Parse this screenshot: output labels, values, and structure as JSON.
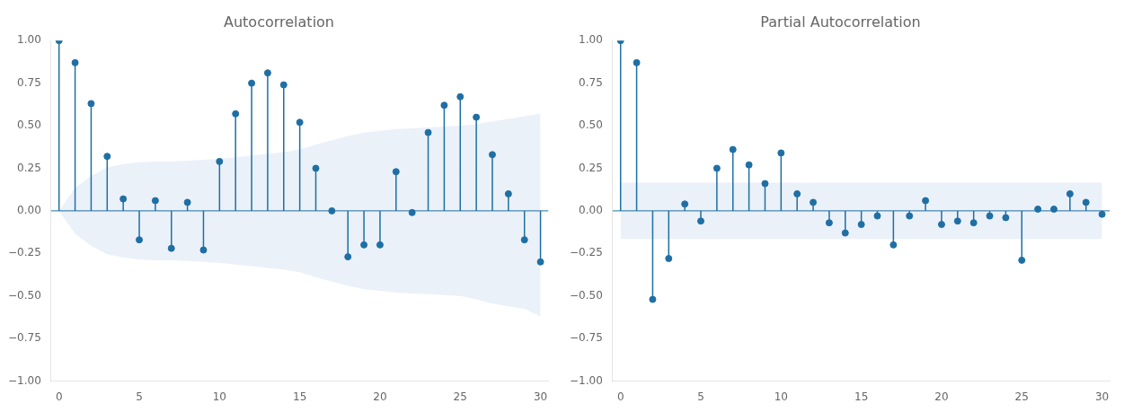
{
  "chart_data": [
    {
      "type": "stem",
      "title": "Autocorrelation",
      "x": [
        0,
        1,
        2,
        3,
        4,
        5,
        6,
        7,
        8,
        9,
        10,
        11,
        12,
        13,
        14,
        15,
        16,
        17,
        18,
        19,
        20,
        21,
        22,
        23,
        24,
        25,
        26,
        27,
        28,
        29,
        30
      ],
      "series": [
        {
          "type": "band",
          "color": "#aec9e8",
          "upper": [
            0.0,
            0.135,
            0.205,
            0.255,
            0.275,
            0.285,
            0.29,
            0.29,
            0.295,
            0.3,
            0.305,
            0.315,
            0.325,
            0.335,
            0.345,
            0.36,
            0.39,
            0.415,
            0.44,
            0.46,
            0.47,
            0.48,
            0.485,
            0.49,
            0.495,
            0.5,
            0.51,
            0.525,
            0.54,
            0.555,
            0.57
          ],
          "lower": [
            0.0,
            -0.135,
            -0.205,
            -0.255,
            -0.275,
            -0.285,
            -0.29,
            -0.29,
            -0.295,
            -0.3,
            -0.305,
            -0.315,
            -0.325,
            -0.335,
            -0.345,
            -0.36,
            -0.39,
            -0.415,
            -0.44,
            -0.46,
            -0.47,
            -0.48,
            -0.485,
            -0.49,
            -0.495,
            -0.5,
            -0.52,
            -0.545,
            -0.56,
            -0.575,
            -0.62
          ]
        },
        {
          "type": "stem",
          "color": "#1f6fa4",
          "marker": "circle",
          "values": [
            1.0,
            0.87,
            0.63,
            0.32,
            0.07,
            -0.17,
            0.06,
            -0.22,
            0.05,
            -0.23,
            0.29,
            0.57,
            0.75,
            0.81,
            0.74,
            0.52,
            0.25,
            0.0,
            -0.27,
            -0.2,
            -0.2,
            0.23,
            -0.01,
            0.46,
            0.62,
            0.67,
            0.55,
            0.33,
            0.1,
            -0.17,
            -0.3
          ]
        }
      ],
      "xlim": [
        -0.5,
        30.5
      ],
      "xticks": [
        0,
        5,
        10,
        15,
        20,
        25,
        30
      ],
      "ylim": [
        -1.0,
        1.0
      ],
      "yticks": [
        {
          "value": -1.0,
          "label": "−1.00"
        },
        {
          "value": -0.75,
          "label": "−0.75"
        },
        {
          "value": -0.5,
          "label": "−0.50"
        },
        {
          "value": -0.25,
          "label": "−0.25"
        },
        {
          "value": 0.0,
          "label": "0.00"
        },
        {
          "value": 0.25,
          "label": "0.25"
        },
        {
          "value": 0.5,
          "label": "0.50"
        },
        {
          "value": 0.75,
          "label": "0.75"
        },
        {
          "value": 1.0,
          "label": "1.00"
        }
      ],
      "grid": false
    },
    {
      "type": "stem",
      "title": "Partial Autocorrelation",
      "x": [
        0,
        1,
        2,
        3,
        4,
        5,
        6,
        7,
        8,
        9,
        10,
        11,
        12,
        13,
        14,
        15,
        16,
        17,
        18,
        19,
        20,
        21,
        22,
        23,
        24,
        25,
        26,
        27,
        28,
        29,
        30
      ],
      "series": [
        {
          "type": "band",
          "color": "#aec9e8",
          "upper": [
            0.165,
            0.165,
            0.165,
            0.165,
            0.165,
            0.165,
            0.165,
            0.165,
            0.165,
            0.165,
            0.165,
            0.165,
            0.165,
            0.165,
            0.165,
            0.165,
            0.165,
            0.165,
            0.165,
            0.165,
            0.165,
            0.165,
            0.165,
            0.165,
            0.165,
            0.165,
            0.165,
            0.165,
            0.165,
            0.165,
            0.165
          ],
          "lower": [
            -0.165,
            -0.165,
            -0.165,
            -0.165,
            -0.165,
            -0.165,
            -0.165,
            -0.165,
            -0.165,
            -0.165,
            -0.165,
            -0.165,
            -0.165,
            -0.165,
            -0.165,
            -0.165,
            -0.165,
            -0.165,
            -0.165,
            -0.165,
            -0.165,
            -0.165,
            -0.165,
            -0.165,
            -0.165,
            -0.165,
            -0.165,
            -0.165,
            -0.165,
            -0.165,
            -0.165
          ]
        },
        {
          "type": "stem",
          "color": "#1f6fa4",
          "marker": "circle",
          "values": [
            1.0,
            0.87,
            -0.52,
            -0.28,
            0.04,
            -0.06,
            0.25,
            0.36,
            0.27,
            0.16,
            0.34,
            0.1,
            0.05,
            -0.07,
            -0.13,
            -0.08,
            -0.03,
            -0.2,
            -0.03,
            0.06,
            -0.08,
            -0.06,
            -0.07,
            -0.03,
            -0.04,
            -0.29,
            0.01,
            0.01,
            0.1,
            0.05,
            -0.02
          ]
        }
      ],
      "xlim": [
        -0.5,
        30.5
      ],
      "xticks": [
        0,
        5,
        10,
        15,
        20,
        25,
        30
      ],
      "ylim": [
        -1.0,
        1.0
      ],
      "yticks": [
        {
          "value": -1.0,
          "label": "−1.00"
        },
        {
          "value": -0.75,
          "label": "−0.75"
        },
        {
          "value": -0.5,
          "label": "−0.50"
        },
        {
          "value": -0.25,
          "label": "−0.25"
        },
        {
          "value": 0.0,
          "label": "0.00"
        },
        {
          "value": 0.25,
          "label": "0.25"
        },
        {
          "value": 0.5,
          "label": "0.50"
        },
        {
          "value": 0.75,
          "label": "0.75"
        },
        {
          "value": 1.0,
          "label": "1.00"
        }
      ],
      "grid": false
    }
  ]
}
